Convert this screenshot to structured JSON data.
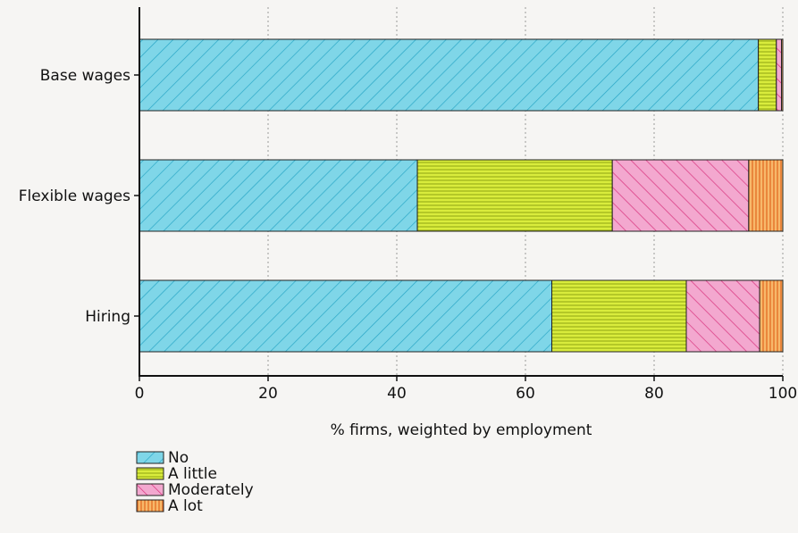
{
  "chart_data": {
    "type": "bar",
    "orientation": "horizontal",
    "stacked": true,
    "categories": [
      "Base wages",
      "Flexible wages",
      "Hiring"
    ],
    "series": [
      {
        "name": "No",
        "values": [
          96.2,
          43.2,
          64.1
        ],
        "color": "#7fd6e8",
        "stroke": "#2aa7c7",
        "pattern": "diagonal-backslash"
      },
      {
        "name": "A little",
        "values": [
          2.8,
          30.3,
          20.9
        ],
        "color": "#d9ec3c",
        "stroke": "#8ea312",
        "pattern": "horizontal"
      },
      {
        "name": "Moderately",
        "values": [
          0.8,
          21.2,
          11.4
        ],
        "color": "#f3a8cf",
        "stroke": "#d9357f",
        "pattern": "diagonal-slash"
      },
      {
        "name": "A lot",
        "values": [
          0.2,
          5.3,
          3.6
        ],
        "color": "#f7b86a",
        "stroke": "#e2661c",
        "pattern": "vertical"
      }
    ],
    "xlabel": "% firms, weighted by employment",
    "ylabel": "",
    "xlim": [
      0,
      100
    ],
    "xticks": [
      0,
      20,
      40,
      60,
      80,
      100
    ],
    "grid": "vertical-dotted",
    "legend_position": "bottom-left"
  }
}
